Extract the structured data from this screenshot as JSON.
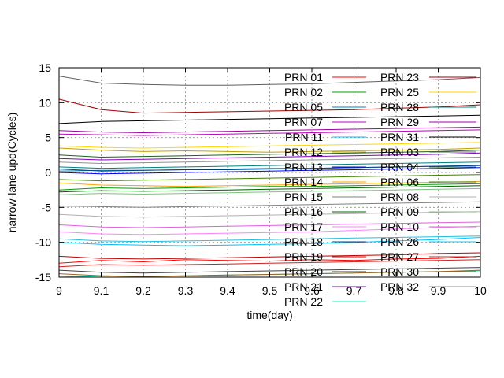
{
  "chart_data": {
    "type": "line",
    "title": "",
    "xlabel": "time(day)",
    "ylabel": "narrow-lane upd(Cycles)",
    "xlim": [
      9,
      10
    ],
    "ylim": [
      -15,
      15
    ],
    "x_ticks": [
      9,
      9.1,
      9.2,
      9.3,
      9.4,
      9.5,
      9.6,
      9.7,
      9.8,
      9.9,
      10
    ],
    "x_tick_labels": [
      "9",
      "9.1",
      "9.2",
      "9.3",
      "9.4",
      "9.5",
      "9.6",
      "9.7",
      "9.8",
      "9.9",
      "10"
    ],
    "y_ticks": [
      -15,
      -10,
      -5,
      0,
      5,
      10,
      15
    ],
    "y_tick_labels": [
      "-15",
      "-10",
      "-5",
      "0",
      "5",
      "10",
      "15"
    ],
    "grid": true,
    "legend_position": "top-right",
    "x": [
      9,
      9.1,
      9.2,
      9.3,
      9.4,
      9.5,
      9.6,
      9.7,
      9.8,
      9.9,
      10
    ],
    "series": [
      {
        "name": "PRN 01",
        "color": "#ff0000",
        "values": [
          -13.0,
          -12.6,
          -12.8,
          -12.5,
          -12.6,
          -12.7,
          -12.5,
          -12.6,
          -12.4,
          -12.3,
          -12.0
        ]
      },
      {
        "name": "PRN 02",
        "color": "#00a000",
        "values": [
          -2.5,
          -2.2,
          -2.3,
          -2.2,
          -2.1,
          -2.0,
          -2.0,
          -1.9,
          -1.8,
          -1.7,
          -1.6
        ]
      },
      {
        "name": "PRN 05",
        "color": "#0080c0",
        "values": [
          0.2,
          0.3,
          0.3,
          0.4,
          0.5,
          0.6,
          0.6,
          0.7,
          0.8,
          0.9,
          1.0
        ]
      },
      {
        "name": "PRN 07",
        "color": "#c000c0",
        "values": [
          5.5,
          5.4,
          5.3,
          5.4,
          5.5,
          5.6,
          5.7,
          5.8,
          5.9,
          6.0,
          6.1
        ]
      },
      {
        "name": "PRN 11",
        "color": "#00c0ff",
        "values": [
          -10.0,
          -10.3,
          -10.4,
          -10.5,
          -10.4,
          -10.3,
          -10.2,
          -10.0,
          -9.8,
          -9.6,
          -9.3
        ]
      },
      {
        "name": "PRN 12",
        "color": "#c0a000",
        "values": [
          3.5,
          3.2,
          3.0,
          3.1,
          3.0,
          2.9,
          3.0,
          3.1,
          3.2,
          3.3,
          3.5
        ]
      },
      {
        "name": "PRN 13",
        "color": "#0000ff",
        "values": [
          0.0,
          -0.2,
          -0.1,
          0.0,
          0.1,
          0.2,
          0.3,
          0.4,
          0.5,
          0.6,
          0.7
        ]
      },
      {
        "name": "PRN 14",
        "color": "#ffa000",
        "values": [
          -1.5,
          -1.8,
          -1.9,
          -2.0,
          -1.9,
          -1.8,
          -1.7,
          -1.6,
          -1.5,
          -1.4,
          -1.3
        ]
      },
      {
        "name": "PRN 15",
        "color": "#808080",
        "values": [
          -4.8,
          -4.9,
          -5.0,
          -4.9,
          -4.8,
          -4.7,
          -4.6,
          -4.5,
          -4.4,
          -4.3,
          -4.2
        ]
      },
      {
        "name": "PRN 16",
        "color": "#006400",
        "values": [
          -2.8,
          -2.6,
          -2.7,
          -2.6,
          -2.5,
          -2.4,
          -2.3,
          -2.2,
          -2.1,
          -2.0,
          -1.9
        ]
      },
      {
        "name": "PRN 17",
        "color": "#ff80ff",
        "values": [
          -8.5,
          -8.8,
          -8.9,
          -8.8,
          -8.7,
          -8.6,
          -8.5,
          -8.3,
          -8.1,
          -7.9,
          -7.7
        ]
      },
      {
        "name": "PRN 18",
        "color": "#004080",
        "values": [
          0.5,
          0.2,
          0.3,
          0.4,
          0.4,
          0.5,
          0.6,
          0.7,
          0.8,
          0.9,
          1.0
        ]
      },
      {
        "name": "PRN 19",
        "color": "#c00000",
        "values": [
          -12.0,
          -12.3,
          -12.4,
          -12.3,
          -12.2,
          -12.1,
          -12.0,
          -11.9,
          -11.8,
          -11.6,
          -11.5
        ]
      },
      {
        "name": "PRN 20",
        "color": "#404040",
        "values": [
          -14.0,
          -14.3,
          -14.4,
          -14.3,
          -14.2,
          -14.1,
          -14.0,
          -13.9,
          -13.8,
          -13.7,
          -13.6
        ]
      },
      {
        "name": "PRN 21",
        "color": "#8000c0",
        "values": [
          2.0,
          1.8,
          1.9,
          2.0,
          2.1,
          2.2,
          2.3,
          2.4,
          2.5,
          2.6,
          2.8
        ]
      },
      {
        "name": "PRN 22",
        "color": "#00ffc0",
        "values": [
          -15.0,
          -14.8,
          -14.9,
          -14.8,
          -14.7,
          -14.6,
          -14.5,
          -14.4,
          -14.3,
          -14.2,
          -14.1
        ]
      },
      {
        "name": "PRN 23",
        "color": "#a00000",
        "values": [
          10.5,
          9.0,
          8.5,
          8.6,
          8.7,
          8.8,
          8.9,
          9.0,
          9.2,
          9.4,
          9.7
        ]
      },
      {
        "name": "PRN 25",
        "color": "#ffd700",
        "values": [
          3.8,
          3.6,
          3.5,
          3.6,
          3.7,
          3.8,
          3.9,
          4.0,
          4.1,
          4.2,
          4.3
        ]
      },
      {
        "name": "PRN 28",
        "color": "#008080",
        "values": [
          0.8,
          0.6,
          0.7,
          0.8,
          0.9,
          1.0,
          1.1,
          1.2,
          1.3,
          1.4,
          1.5
        ]
      },
      {
        "name": "PRN 29",
        "color": "#a000a0",
        "values": [
          6.0,
          5.8,
          5.7,
          5.8,
          5.9,
          6.0,
          6.1,
          6.2,
          6.3,
          6.4,
          6.5
        ]
      },
      {
        "name": "PRN 31",
        "color": "#000000",
        "values": [
          7.0,
          7.3,
          7.4,
          7.5,
          7.6,
          7.7,
          7.8,
          7.9,
          8.0,
          8.1,
          8.2
        ]
      },
      {
        "name": "PRN 03",
        "color": "#606060",
        "values": [
          13.8,
          12.8,
          12.6,
          12.5,
          12.5,
          12.6,
          12.7,
          12.9,
          13.1,
          13.3,
          13.6
        ]
      },
      {
        "name": "PRN 04",
        "color": "#206020",
        "values": [
          2.5,
          2.2,
          2.3,
          2.4,
          2.5,
          2.6,
          2.7,
          2.8,
          2.9,
          3.0,
          3.2
        ]
      },
      {
        "name": "PRN 06",
        "color": "#408000",
        "values": [
          -1.0,
          -1.2,
          -1.1,
          -1.0,
          -0.9,
          -0.8,
          -0.7,
          -0.6,
          -0.5,
          -0.4,
          -0.3
        ]
      },
      {
        "name": "PRN 08",
        "color": "#b0b0b0",
        "values": [
          -6.0,
          -6.3,
          -6.4,
          -6.3,
          -6.2,
          -6.1,
          -6.0,
          -5.9,
          -5.8,
          -5.7,
          -5.6
        ]
      },
      {
        "name": "PRN 09",
        "color": "#80c080",
        "values": [
          -3.2,
          -3.0,
          -3.1,
          -3.0,
          -2.9,
          -2.8,
          -2.7,
          -2.6,
          -2.5,
          -2.4,
          -2.3
        ]
      },
      {
        "name": "PRN 10",
        "color": "#e060e0",
        "values": [
          -7.5,
          -7.8,
          -7.9,
          -7.8,
          -7.7,
          -7.6,
          -7.5,
          -7.4,
          -7.3,
          -7.2,
          -7.1
        ]
      },
      {
        "name": "PRN 26",
        "color": "#20c0e0",
        "values": [
          -9.5,
          -9.8,
          -9.9,
          -9.8,
          -9.7,
          -9.6,
          -9.5,
          -9.4,
          -9.3,
          -9.2,
          -9.1
        ]
      },
      {
        "name": "PRN 27",
        "color": "#d02020",
        "values": [
          -13.5,
          -13.2,
          -13.3,
          -13.2,
          -13.1,
          -13.0,
          -12.9,
          -12.8,
          -12.7,
          -12.6,
          -12.5
        ]
      },
      {
        "name": "PRN 30",
        "color": "#a06020",
        "values": [
          -14.5,
          -14.8,
          -14.9,
          -14.8,
          -14.7,
          -14.6,
          -14.5,
          -14.4,
          -14.3,
          -14.2,
          -14.0
        ]
      },
      {
        "name": "PRN 32",
        "color": "#909090",
        "values": [
          1.5,
          1.3,
          1.4,
          1.5,
          1.6,
          1.7,
          1.8,
          1.9,
          2.0,
          2.1,
          2.2
        ]
      }
    ]
  }
}
